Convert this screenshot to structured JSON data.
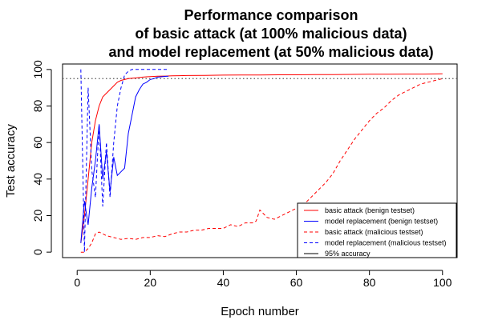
{
  "chart_data": {
    "type": "line",
    "title_lines": [
      "Performance comparison",
      "of basic attack (at 100% malicious data)",
      "and model replacement (at 50% malicious data)"
    ],
    "xlabel": "Epoch number",
    "ylabel": "Test accuracy",
    "xlim": [
      -4,
      104
    ],
    "ylim": [
      -3,
      103
    ],
    "x_ticks": [
      0,
      20,
      40,
      60,
      80,
      100
    ],
    "y_ticks": [
      0,
      20,
      40,
      60,
      80,
      100
    ],
    "grid": false,
    "legend_position": "bottom-right",
    "reference_line": {
      "name": "95% accuracy",
      "y": 95,
      "color": "#555555",
      "style": "dotted"
    },
    "series": [
      {
        "name": "basic attack (benign testset)",
        "color": "#ff0000",
        "style": "solid",
        "x": [
          1,
          2,
          3,
          4,
          5,
          6,
          7,
          8,
          9,
          10,
          11,
          12,
          13,
          14,
          15,
          16,
          17,
          18,
          19,
          20,
          22,
          24,
          26,
          28,
          30,
          35,
          40,
          45,
          50,
          55,
          60,
          65,
          70,
          75,
          80,
          85,
          90,
          95,
          100
        ],
        "y": [
          5,
          20,
          40,
          60,
          72,
          80,
          85,
          87,
          89,
          91,
          93,
          94,
          94.5,
          95,
          95.2,
          95.4,
          95.6,
          95.8,
          96,
          96.1,
          96.3,
          96.4,
          96.5,
          96.6,
          96.7,
          96.8,
          96.9,
          97,
          97,
          97.1,
          97.1,
          97.2,
          97.2,
          97.3,
          97.4,
          97.4,
          97.5,
          97.5,
          97.6
        ]
      },
      {
        "name": "model replacement (benign testset)",
        "color": "#0000ff",
        "style": "solid",
        "x": [
          1,
          2,
          3,
          4,
          5,
          6,
          7,
          8,
          9,
          10,
          11,
          12,
          13,
          14,
          15,
          16,
          17,
          18,
          19,
          20,
          21,
          22,
          23,
          24,
          25
        ],
        "y": [
          5,
          28,
          15,
          35,
          50,
          70,
          40,
          55,
          33,
          52,
          42,
          44,
          46,
          65,
          75,
          85,
          89,
          92,
          93,
          94.5,
          95,
          95.8,
          96,
          96.2,
          96.3
        ]
      },
      {
        "name": "basic attack (malicious testset)",
        "color": "#ff0000",
        "style": "dashed",
        "x": [
          1,
          2,
          3,
          4,
          5,
          6,
          8,
          10,
          12,
          14,
          16,
          18,
          20,
          22,
          24,
          26,
          28,
          30,
          32,
          34,
          36,
          38,
          40,
          42,
          44,
          46,
          48,
          49,
          50,
          52,
          54,
          56,
          58,
          60,
          62,
          64,
          66,
          68,
          70,
          72,
          74,
          76,
          78,
          80,
          82,
          84,
          86,
          88,
          90,
          92,
          94,
          96,
          98,
          100
        ],
        "y": [
          0,
          0,
          2,
          5,
          10,
          11,
          9,
          8,
          7,
          7.5,
          7,
          8,
          8,
          9,
          8.5,
          10,
          11,
          11,
          12,
          12,
          13,
          13,
          13,
          15,
          14,
          16,
          16,
          17,
          23,
          19,
          18,
          20,
          22,
          24,
          26,
          30,
          34,
          38,
          43,
          50,
          56,
          62,
          67,
          72,
          76,
          79,
          83,
          86,
          88,
          90,
          92,
          93,
          94,
          95
        ]
      },
      {
        "name": "model replacement (malicious testset)",
        "color": "#0000ff",
        "style": "dashed",
        "x": [
          1,
          2,
          3,
          4,
          5,
          6,
          7,
          8,
          9,
          10,
          11,
          12,
          13,
          14,
          15,
          16,
          17,
          18,
          19,
          20,
          21,
          22,
          23,
          24,
          25
        ],
        "y": [
          100,
          0,
          90,
          45,
          30,
          70,
          25,
          60,
          30,
          60,
          80,
          90,
          97,
          99,
          100,
          100,
          100,
          100,
          100,
          100,
          100,
          100,
          100,
          100,
          100
        ]
      },
      {
        "name": "95% accuracy",
        "color": "#000000",
        "style": "solid",
        "legend_only": true
      }
    ]
  }
}
